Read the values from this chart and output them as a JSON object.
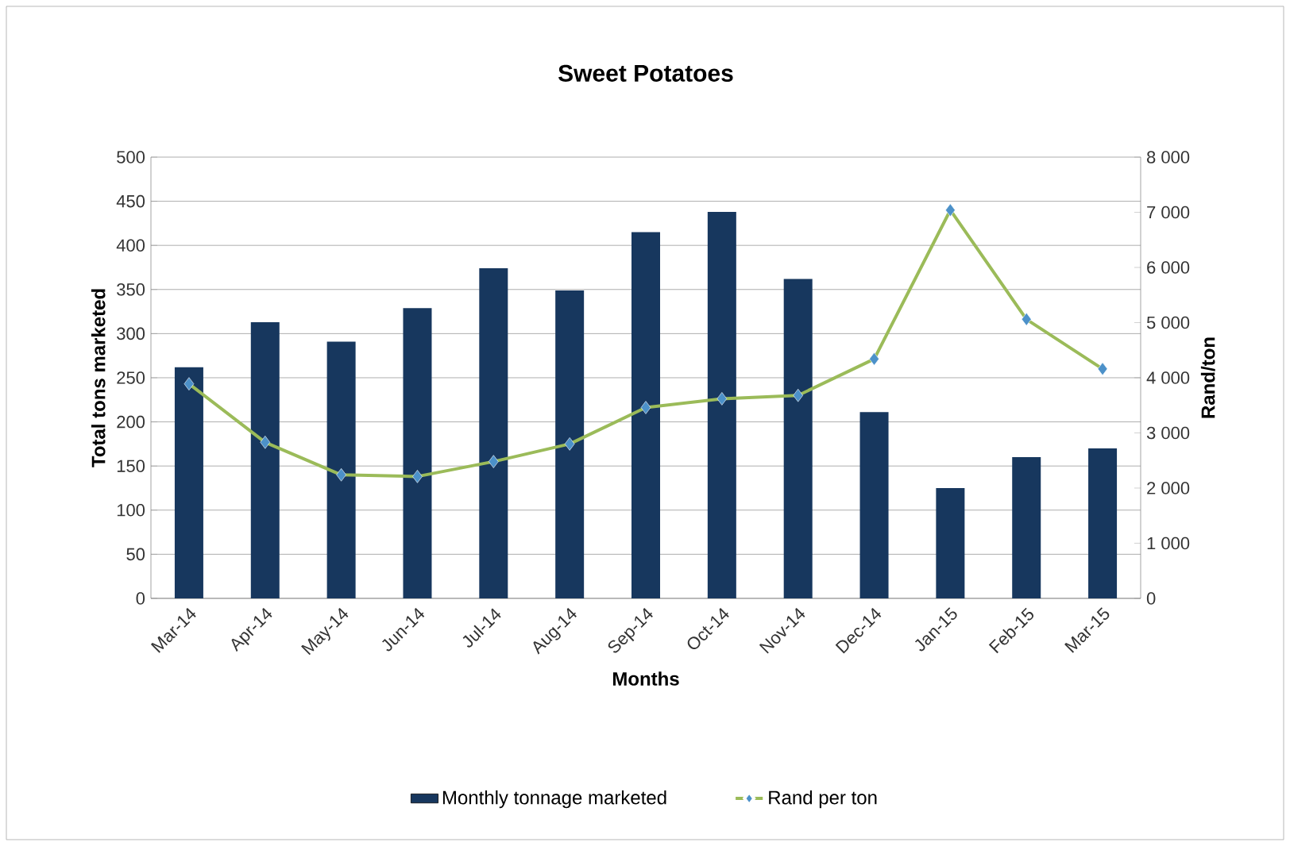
{
  "chart_data": {
    "type": "bar",
    "title": "Sweet Potatoes",
    "xlabel": "Months",
    "ylabel": "Total  tons marketed",
    "y2label": "Rand/ton",
    "categories": [
      "Mar-14",
      "Apr-14",
      "May-14",
      "Jun-14",
      "Jul-14",
      "Aug-14",
      "Sep-14",
      "Oct-14",
      "Nov-14",
      "Dec-14",
      "Jan-15",
      "Feb-15",
      "Mar-15"
    ],
    "series": [
      {
        "name": "Monthly tonnage marketed",
        "color": "#17375e",
        "values": [
          262,
          313,
          291,
          329,
          374,
          349,
          415,
          438,
          362,
          211,
          125,
          160,
          170
        ]
      },
      {
        "name": "Rand per ton",
        "type": "line",
        "axis": "y2",
        "color": "#9bbb59",
        "marker": "diamond",
        "values": [
          3890,
          2830,
          2240,
          2210,
          2480,
          2800,
          3460,
          3620,
          3680,
          4340,
          7040,
          5060,
          4160
        ]
      }
    ],
    "ylim": [
      0,
      500
    ],
    "yticks": [
      0,
      50,
      100,
      150,
      200,
      250,
      300,
      350,
      400,
      450,
      500
    ],
    "y2lim": [
      0,
      8000
    ],
    "y2ticks": [
      0,
      {
        "value": 1000,
        "label": "1 000"
      },
      {
        "value": 2000,
        "label": "2 000"
      },
      {
        "value": 3000,
        "label": "3 000"
      },
      {
        "value": 4000,
        "label": "4 000"
      },
      {
        "value": 5000,
        "label": "5 000"
      },
      {
        "value": 6000,
        "label": "6 000"
      },
      {
        "value": 7000,
        "label": "7 000"
      },
      {
        "value": 8000,
        "label": "8 000"
      }
    ],
    "grid": "y",
    "legend": "bottom"
  }
}
